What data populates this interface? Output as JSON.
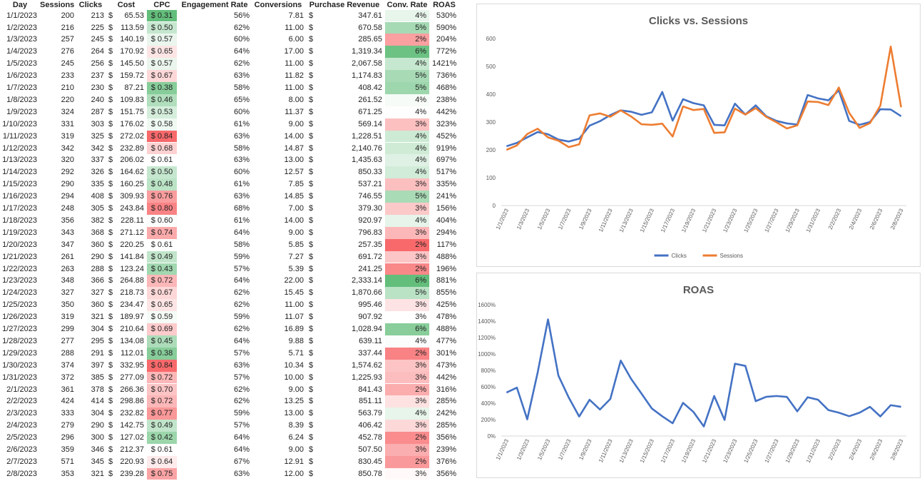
{
  "table": {
    "headers": [
      "Day",
      "Sessions",
      "Clicks",
      "Cost",
      "CPC",
      "Engagement Rate",
      "Conversions",
      "Purchase Revenue",
      "Conv. Rate",
      "ROAS"
    ],
    "rows": [
      [
        "1/1/2023",
        200,
        213,
        "65.53",
        "0.31",
        "56%",
        "7.81",
        "347.61",
        "4%",
        "530%"
      ],
      [
        "1/2/2023",
        216,
        225,
        "113.59",
        "0.50",
        "62%",
        "11.00",
        "670.58",
        "5%",
        "590%"
      ],
      [
        "1/3/2023",
        257,
        245,
        "140.19",
        "0.57",
        "60%",
        "6.00",
        "285.65",
        "2%",
        "204%"
      ],
      [
        "1/4/2023",
        276,
        264,
        "170.92",
        "0.65",
        "64%",
        "17.00",
        "1,319.34",
        "6%",
        "772%"
      ],
      [
        "1/5/2023",
        245,
        256,
        "145.50",
        "0.57",
        "62%",
        "11.00",
        "2,067.58",
        "4%",
        "1421%"
      ],
      [
        "1/6/2023",
        233,
        237,
        "159.72",
        "0.67",
        "63%",
        "11.82",
        "1,174.83",
        "5%",
        "736%"
      ],
      [
        "1/7/2023",
        210,
        230,
        "87.21",
        "0.38",
        "58%",
        "11.00",
        "408.42",
        "5%",
        "468%"
      ],
      [
        "1/8/2023",
        220,
        240,
        "109.83",
        "0.46",
        "65%",
        "8.00",
        "261.52",
        "4%",
        "238%"
      ],
      [
        "1/9/2023",
        324,
        287,
        "151.75",
        "0.53",
        "60%",
        "11.37",
        "671.25",
        "4%",
        "442%"
      ],
      [
        "1/10/2023",
        331,
        303,
        "176.02",
        "0.58",
        "61%",
        "9.00",
        "569.14",
        "3%",
        "323%"
      ],
      [
        "1/11/2023",
        319,
        325,
        "272.02",
        "0.84",
        "63%",
        "14.00",
        "1,228.51",
        "4%",
        "452%"
      ],
      [
        "1/12/2023",
        342,
        342,
        "232.89",
        "0.68",
        "58%",
        "14.87",
        "2,140.76",
        "4%",
        "919%"
      ],
      [
        "1/13/2023",
        320,
        337,
        "206.02",
        "0.61",
        "63%",
        "13.00",
        "1,435.63",
        "4%",
        "697%"
      ],
      [
        "1/14/2023",
        292,
        326,
        "164.62",
        "0.50",
        "60%",
        "12.57",
        "850.33",
        "4%",
        "517%"
      ],
      [
        "1/15/2023",
        290,
        335,
        "160.25",
        "0.48",
        "61%",
        "7.85",
        "537.21",
        "3%",
        "335%"
      ],
      [
        "1/16/2023",
        294,
        408,
        "309.93",
        "0.76",
        "63%",
        "14.85",
        "746.55",
        "5%",
        "241%"
      ],
      [
        "1/17/2023",
        248,
        305,
        "243.84",
        "0.80",
        "68%",
        "7.00",
        "379.30",
        "3%",
        "156%"
      ],
      [
        "1/18/2023",
        356,
        382,
        "228.11",
        "0.60",
        "61%",
        "14.00",
        "920.97",
        "4%",
        "404%"
      ],
      [
        "1/19/2023",
        343,
        368,
        "271.12",
        "0.74",
        "64%",
        "9.00",
        "796.83",
        "3%",
        "294%"
      ],
      [
        "1/20/2023",
        347,
        360,
        "220.25",
        "0.61",
        "58%",
        "5.85",
        "257.35",
        "2%",
        "117%"
      ],
      [
        "1/21/2023",
        261,
        290,
        "141.84",
        "0.49",
        "59%",
        "7.27",
        "691.72",
        "3%",
        "488%"
      ],
      [
        "1/22/2023",
        263,
        288,
        "123.24",
        "0.43",
        "57%",
        "5.39",
        "241.25",
        "2%",
        "196%"
      ],
      [
        "1/23/2023",
        348,
        366,
        "264.88",
        "0.72",
        "64%",
        "22.00",
        "2,333.14",
        "6%",
        "881%"
      ],
      [
        "1/24/2023",
        327,
        327,
        "218.73",
        "0.67",
        "62%",
        "15.45",
        "1,870.66",
        "5%",
        "855%"
      ],
      [
        "1/25/2023",
        350,
        360,
        "234.47",
        "0.65",
        "62%",
        "11.00",
        "995.46",
        "3%",
        "425%"
      ],
      [
        "1/26/2023",
        319,
        321,
        "189.97",
        "0.59",
        "59%",
        "11.07",
        "907.92",
        "3%",
        "478%"
      ],
      [
        "1/27/2023",
        299,
        304,
        "210.64",
        "0.69",
        "62%",
        "16.89",
        "1,028.94",
        "6%",
        "488%"
      ],
      [
        "1/28/2023",
        277,
        295,
        "134.08",
        "0.45",
        "64%",
        "9.88",
        "639.11",
        "4%",
        "477%"
      ],
      [
        "1/29/2023",
        288,
        291,
        "112.01",
        "0.38",
        "57%",
        "5.71",
        "337.44",
        "2%",
        "301%"
      ],
      [
        "1/30/2023",
        374,
        397,
        "332.95",
        "0.84",
        "63%",
        "10.34",
        "1,574.62",
        "3%",
        "473%"
      ],
      [
        "1/31/2023",
        372,
        385,
        "277.09",
        "0.72",
        "57%",
        "10.00",
        "1,225.93",
        "3%",
        "442%"
      ],
      [
        "2/1/2023",
        361,
        378,
        "266.36",
        "0.70",
        "62%",
        "9.00",
        "841.43",
        "2%",
        "316%"
      ],
      [
        "2/2/2023",
        424,
        414,
        "298.86",
        "0.72",
        "62%",
        "13.25",
        "851.11",
        "3%",
        "285%"
      ],
      [
        "2/3/2023",
        333,
        304,
        "232.82",
        "0.77",
        "59%",
        "13.00",
        "563.79",
        "4%",
        "242%"
      ],
      [
        "2/4/2023",
        279,
        290,
        "142.75",
        "0.49",
        "57%",
        "8.39",
        "406.42",
        "3%",
        "285%"
      ],
      [
        "2/5/2023",
        296,
        300,
        "127.02",
        "0.42",
        "64%",
        "6.24",
        "452.78",
        "2%",
        "356%"
      ],
      [
        "2/6/2023",
        359,
        346,
        "212.37",
        "0.61",
        "64%",
        "9.00",
        "507.50",
        "3%",
        "239%"
      ],
      [
        "2/7/2023",
        571,
        345,
        "220.93",
        "0.64",
        "67%",
        "12.91",
        "830.45",
        "2%",
        "376%"
      ],
      [
        "2/8/2023",
        353,
        321,
        "239.28",
        "0.75",
        "63%",
        "12.00",
        "850.78",
        "3%",
        "356%"
      ]
    ],
    "currency": "$",
    "scale_colors": {
      "good": "#63BE7B",
      "mid": "#FFFFFF",
      "bad": "#F8696B"
    }
  },
  "chart_data": [
    {
      "type": "line",
      "title": "Clicks vs. Sessions",
      "ylim": [
        0,
        600
      ],
      "yticks": [
        0,
        100,
        200,
        300,
        400,
        500,
        600
      ],
      "legend": "bottom",
      "grid": false,
      "x_ticks": [
        "1/1/2023",
        "1/3/2023",
        "1/5/2023",
        "1/7/2023",
        "1/9/2023",
        "1/11/2023",
        "1/13/2023",
        "1/15/2023",
        "1/17/2023",
        "1/19/2023",
        "1/21/2023",
        "1/23/2023",
        "1/25/2023",
        "1/27/2023",
        "1/29/2023",
        "1/31/2023",
        "2/2/2023",
        "2/4/2023",
        "2/6/2023",
        "2/8/2023"
      ],
      "series": [
        {
          "name": "Clicks",
          "color": "#4472C4",
          "source": "clicks"
        },
        {
          "name": "Sessions",
          "color": "#ED7D31",
          "source": "sessions"
        }
      ]
    },
    {
      "type": "line",
      "title": "ROAS",
      "ylim": [
        0,
        1600
      ],
      "yticks": [
        "0%",
        "200%",
        "400%",
        "600%",
        "800%",
        "1000%",
        "1200%",
        "1400%",
        "1600%"
      ],
      "legend": "none",
      "grid": false,
      "x_ticks": [
        "1/1/2023",
        "1/3/2023",
        "1/5/2023",
        "1/7/2023",
        "1/9/2023",
        "1/11/2023",
        "1/13/2023",
        "1/15/2023",
        "1/17/2023",
        "1/19/2023",
        "1/21/2023",
        "1/23/2023",
        "1/25/2023",
        "1/27/2023",
        "1/29/2023",
        "1/31/2023",
        "2/2/2023",
        "2/4/2023",
        "2/6/2023",
        "2/8/2023"
      ],
      "series": [
        {
          "color": "#4472C4",
          "source": "roas"
        }
      ]
    }
  ]
}
